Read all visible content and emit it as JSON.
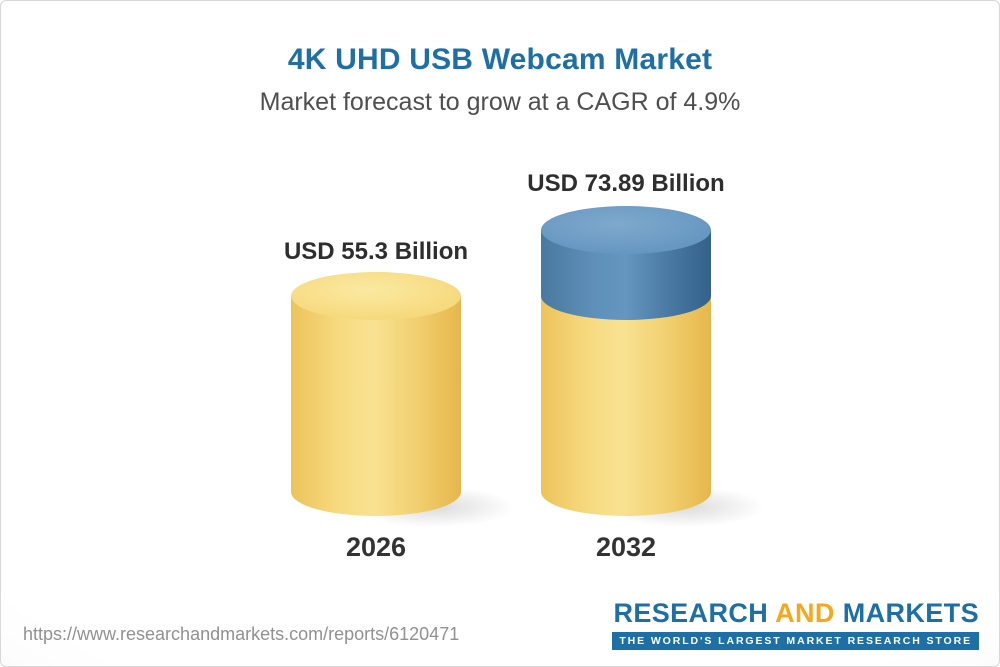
{
  "header": {
    "title": "4K UHD USB Webcam Market",
    "subtitle": "Market forecast to grow at a CAGR of 4.9%"
  },
  "chart_data": {
    "type": "bar",
    "variant": "3d-cylinder",
    "title": "4K UHD USB Webcam Market",
    "subtitle": "Market forecast to grow at a CAGR of 4.9%",
    "categories": [
      "2026",
      "2032"
    ],
    "values": [
      55.3,
      73.89
    ],
    "unit": "USD Billion",
    "value_labels": [
      "USD 55.3 Billion",
      "USD 73.89 Billion"
    ],
    "cagr_percent": 4.9,
    "colors": {
      "cylinder_yellow": "#F3D172",
      "cylinder_blue": "#5B8DB8",
      "title_blue": "#1D6FA5",
      "logo_gold": "#F5A81C"
    }
  },
  "footer": {
    "url": "https://www.researchandmarkets.com/reports/6120471",
    "logo": {
      "word1": "RESEARCH",
      "word2": "AND",
      "word3": "MARKETS",
      "tagline": "THE WORLD'S LARGEST MARKET RESEARCH STORE"
    }
  }
}
